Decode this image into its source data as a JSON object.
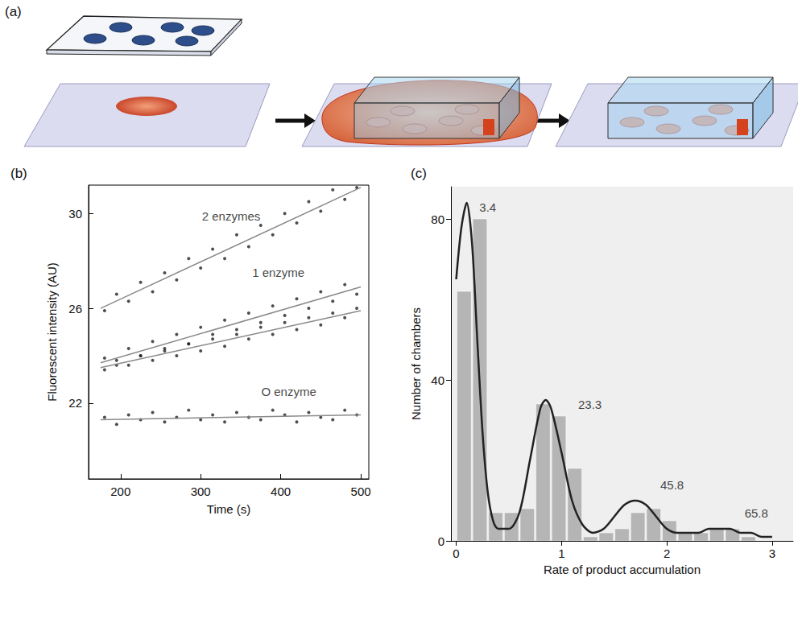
{
  "diagram": {
    "panel_label": "(a)"
  },
  "chart_data": [
    {
      "type": "scatter",
      "panel_label": "(b)",
      "x_label": "Time (s)",
      "y_label": "Fluorescent intensity (AU)",
      "xlim": [
        160,
        510
      ],
      "xticks": [
        200,
        300,
        400,
        500
      ],
      "ylim": [
        18.8,
        31.2
      ],
      "yticks": [
        22,
        26,
        30
      ],
      "grid": false,
      "marker": "circle",
      "x": [
        180,
        195,
        210,
        225,
        240,
        255,
        270,
        285,
        300,
        315,
        330,
        345,
        360,
        375,
        390,
        405,
        420,
        435,
        450,
        465,
        480,
        495
      ],
      "series": [
        {
          "color": "#222222",
          "values": [
            25.9,
            26.6,
            26.3,
            27.1,
            26.7,
            27.5,
            27.2,
            28.1,
            27.7,
            28.5,
            28.1,
            29.1,
            28.6,
            29.5,
            29.1,
            30.0,
            29.6,
            30.5,
            30.1,
            31.0,
            30.6,
            31.1
          ],
          "fit_x": [
            175,
            500
          ],
          "fit_y": [
            26.0,
            31.1
          ]
        },
        {
          "color": "#222222",
          "values": [
            23.9,
            23.6,
            24.3,
            24.0,
            24.6,
            24.2,
            24.9,
            24.5,
            25.2,
            24.9,
            25.5,
            25.1,
            25.8,
            25.4,
            26.1,
            25.7,
            26.4,
            26.0,
            26.7,
            26.3,
            27.0,
            26.6
          ],
          "fit_x": [
            175,
            500
          ],
          "fit_y": [
            23.7,
            26.9
          ]
        },
        {
          "color": "#222222",
          "values": [
            23.4,
            23.8,
            23.6,
            24.0,
            23.8,
            24.3,
            24.0,
            24.5,
            24.2,
            24.7,
            24.4,
            24.9,
            24.7,
            25.2,
            24.9,
            25.4,
            25.1,
            25.6,
            25.3,
            25.8,
            25.6,
            26.0
          ],
          "fit_x": [
            175,
            500
          ],
          "fit_y": [
            23.5,
            25.9
          ]
        },
        {
          "color": "#222222",
          "values": [
            21.4,
            21.1,
            21.5,
            21.3,
            21.6,
            21.2,
            21.4,
            21.7,
            21.3,
            21.5,
            21.2,
            21.6,
            21.4,
            21.3,
            21.7,
            21.5,
            21.2,
            21.6,
            21.4,
            21.3,
            21.7,
            21.5
          ],
          "fit_x": [
            175,
            500
          ],
          "fit_y": [
            21.3,
            21.5
          ]
        }
      ],
      "annotations": [
        {
          "text": "2 enzymes",
          "x": 338,
          "y": 29.9
        },
        {
          "text": "1 enzyme",
          "x": 397,
          "y": 27.5
        },
        {
          "text": "O enzyme",
          "x": 410,
          "y": 22.5
        }
      ]
    },
    {
      "type": "histogram",
      "panel_label": "(c)",
      "x_label": "Rate of product accumulation",
      "y_label": "Number of chambers",
      "xlim": [
        -0.05,
        3.2
      ],
      "xticks": [
        0,
        1,
        2,
        3
      ],
      "ylim": [
        0,
        88
      ],
      "yticks": [
        0,
        40,
        80
      ],
      "grid": false,
      "color": "#b5b5b5",
      "bins": [
        0,
        0.15,
        0.3,
        0.45,
        0.6,
        0.75,
        0.9,
        1.05,
        1.2,
        1.35,
        1.5,
        1.65,
        1.8,
        1.95,
        2.1,
        2.25,
        2.4,
        2.55,
        2.7,
        2.85,
        3.0
      ],
      "counts": [
        62,
        80,
        7,
        7,
        8,
        34,
        31,
        18,
        1,
        2,
        3,
        7,
        8,
        5,
        2,
        2,
        3,
        3,
        1,
        0
      ],
      "curve": {
        "color": "#222222",
        "x": [
          0,
          0.05,
          0.1,
          0.15,
          0.2,
          0.25,
          0.3,
          0.35,
          0.4,
          0.5,
          0.6,
          0.7,
          0.8,
          0.85,
          0.9,
          1.0,
          1.1,
          1.2,
          1.3,
          1.4,
          1.5,
          1.6,
          1.7,
          1.8,
          1.9,
          2.0,
          2.1,
          2.2,
          2.3,
          2.4,
          2.5,
          2.6,
          2.7,
          2.8,
          2.9,
          3.0
        ],
        "values": [
          65,
          78,
          84,
          74,
          50,
          27,
          12,
          5,
          3,
          3,
          7,
          20,
          33,
          35,
          33,
          22,
          10,
          4,
          2,
          3,
          6,
          9,
          10,
          9,
          6,
          3,
          2,
          2,
          2,
          3,
          3,
          3,
          2,
          2,
          1,
          1
        ]
      },
      "annotations": [
        {
          "text": "3.4",
          "x": 0.3,
          "y": 83
        },
        {
          "text": "23.3",
          "x": 1.27,
          "y": 34
        },
        {
          "text": "45.8",
          "x": 2.05,
          "y": 14
        },
        {
          "text": "65.8",
          "x": 2.85,
          "y": 7
        }
      ]
    }
  ]
}
